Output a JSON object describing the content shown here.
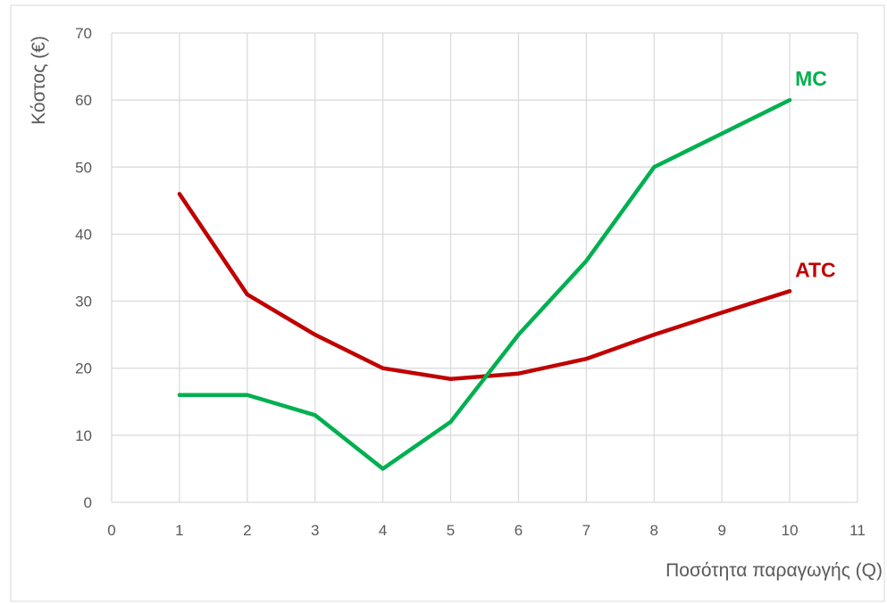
{
  "chart_data": {
    "type": "line",
    "title": "",
    "xlabel": "Ποσότητα παραγωγής (Q)",
    "ylabel": "Κόστος (€)",
    "xlim": [
      0,
      11
    ],
    "ylim": [
      0,
      70
    ],
    "xticks": [
      0,
      1,
      2,
      3,
      4,
      5,
      6,
      7,
      8,
      9,
      10,
      11
    ],
    "yticks": [
      0,
      10,
      20,
      30,
      40,
      50,
      60,
      70
    ],
    "grid": true,
    "legend": "none",
    "series": [
      {
        "name": "ATC",
        "color": "#C00000",
        "x": [
          1,
          2,
          3,
          4,
          5,
          6,
          7,
          8,
          9,
          10
        ],
        "y": [
          46,
          31,
          25,
          20,
          18.4,
          19.2,
          21.4,
          25,
          28.3,
          31.5
        ]
      },
      {
        "name": "MC",
        "color": "#00B050",
        "x": [
          1,
          2,
          3,
          4,
          5,
          6,
          7,
          8,
          9,
          10
        ],
        "y": [
          16,
          16,
          13,
          5,
          12,
          25,
          36,
          50,
          55,
          60
        ]
      }
    ]
  }
}
